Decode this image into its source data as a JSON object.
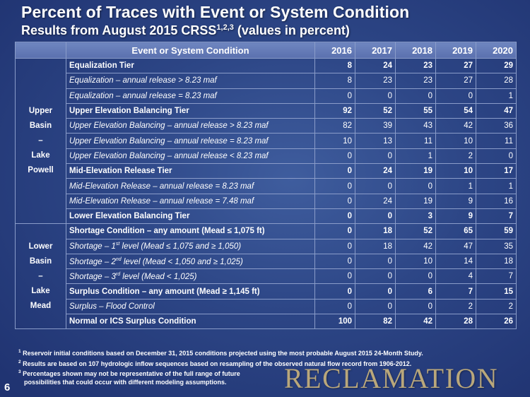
{
  "title": "Percent of Traces with Event or System Condition",
  "subtitle_main": "Results from August 2015 CRSS",
  "subtitle_sup": "1,2,3",
  "subtitle_tail": " (values in percent)",
  "header": {
    "condition": "Event or System Condition",
    "years": [
      "2016",
      "2017",
      "2018",
      "2019",
      "2020"
    ]
  },
  "regions": {
    "upper": [
      "Upper",
      "Basin",
      "–",
      "Lake",
      "Powell"
    ],
    "lower": [
      "Lower",
      "Basin",
      "–",
      "Lake",
      "Mead"
    ]
  },
  "rows": [
    {
      "label": "Equalization Tier",
      "vals": [
        "8",
        "24",
        "23",
        "27",
        "29"
      ]
    },
    {
      "label": "Equalization – annual release > 8.23 maf",
      "vals": [
        "8",
        "23",
        "23",
        "27",
        "28"
      ]
    },
    {
      "label": "Equalization – annual release = 8.23 maf",
      "vals": [
        "0",
        "0",
        "0",
        "0",
        "1"
      ]
    },
    {
      "label": "Upper Elevation Balancing Tier",
      "vals": [
        "92",
        "52",
        "55",
        "54",
        "47"
      ]
    },
    {
      "label": "Upper Elevation Balancing – annual release > 8.23 maf",
      "vals": [
        "82",
        "39",
        "43",
        "42",
        "36"
      ]
    },
    {
      "label": "Upper Elevation Balancing – annual release = 8.23 maf",
      "vals": [
        "10",
        "13",
        "11",
        "10",
        "11"
      ]
    },
    {
      "label": "Upper Elevation Balancing – annual release < 8.23 maf",
      "vals": [
        "0",
        "0",
        "1",
        "2",
        "0"
      ]
    },
    {
      "label": "Mid-Elevation Release Tier",
      "vals": [
        "0",
        "24",
        "19",
        "10",
        "17"
      ]
    },
    {
      "label": "Mid-Elevation Release – annual release = 8.23 maf",
      "vals": [
        "0",
        "0",
        "0",
        "1",
        "1"
      ]
    },
    {
      "label": "Mid-Elevation Release – annual release = 7.48 maf",
      "vals": [
        "0",
        "24",
        "19",
        "9",
        "16"
      ]
    },
    {
      "label": "Lower Elevation Balancing Tier",
      "vals": [
        "0",
        "0",
        "3",
        "9",
        "7"
      ]
    },
    {
      "label": "Shortage Condition – any amount  (Mead ≤ 1,075 ft)",
      "vals": [
        "0",
        "18",
        "52",
        "65",
        "59"
      ]
    },
    {
      "pre": "Shortage – 1",
      "sup": "st",
      "post": " level (Mead ≤ 1,075 and ≥ 1,050)",
      "vals": [
        "0",
        "18",
        "42",
        "47",
        "35"
      ]
    },
    {
      "pre": "Shortage – 2",
      "sup": "nd",
      "post": " level (Mead < 1,050 and ≥ 1,025)",
      "vals": [
        "0",
        "0",
        "10",
        "14",
        "18"
      ]
    },
    {
      "pre": "Shortage – 3",
      "sup": "rd",
      "post": " level (Mead < 1,025)",
      "vals": [
        "0",
        "0",
        "0",
        "4",
        "7"
      ]
    },
    {
      "label": "Surplus Condition – any amount  (Mead ≥ 1,145 ft)",
      "vals": [
        "0",
        "0",
        "6",
        "7",
        "15"
      ]
    },
    {
      "label": "Surplus – Flood Control",
      "vals": [
        "0",
        "0",
        "0",
        "2",
        "2"
      ]
    },
    {
      "label": "Normal or ICS Surplus Condition",
      "vals": [
        "100",
        "82",
        "42",
        "28",
        "26"
      ]
    }
  ],
  "footnotes": [
    {
      "num": "1",
      "text": "Reservoir initial conditions based on December 31, 2015 conditions projected using the most probable August 2015 24-Month Study."
    },
    {
      "num": "2",
      "text": "Results are based on 107 hydrologic inflow sequences based on resampling of the observed natural flow record from 1906-2012."
    },
    {
      "num": "3",
      "text": "Percentages shown may not be representative of the full range of future",
      "cont": "possibilities that could occur with different modeling assumptions."
    }
  ],
  "logo": "RECLAMATION",
  "page_number": "6"
}
